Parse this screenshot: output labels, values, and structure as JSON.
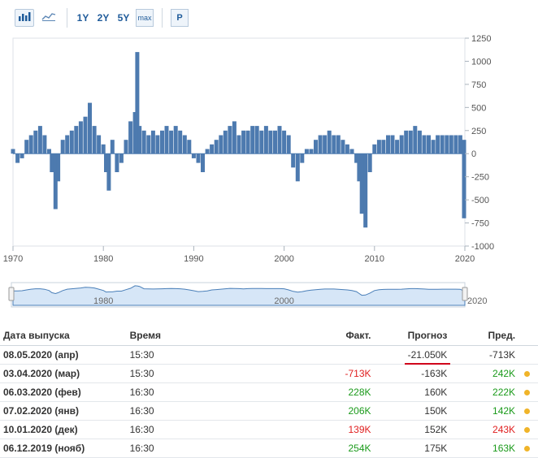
{
  "toolbar": {
    "bar_icon": "bar-chart-icon",
    "line_icon": "line-chart-icon",
    "range_1y": "1Y",
    "range_2y": "2Y",
    "range_5y": "5Y",
    "range_max": "max",
    "p_label": "P"
  },
  "colors": {
    "bar": "#4d7aaf",
    "navigator_fill": "#d6e6f7",
    "navigator_line": "#4a7fb8",
    "positive": "#1a9a1a",
    "negative": "#e02020",
    "dot": "#f0b429",
    "underline": "#d0021b"
  },
  "chart_data": {
    "type": "bar",
    "x_range": [
      1970,
      2020
    ],
    "ylim": [
      -1000,
      1250
    ],
    "y_ticks": [
      "1250",
      "1000",
      "750",
      "500",
      "250",
      "0",
      "-250",
      "-500",
      "-750",
      "-1000"
    ],
    "x_ticks": [
      "1970",
      "1980",
      "1990",
      "2000",
      "2010",
      "2020"
    ],
    "series": [
      {
        "x": [
          1970.0,
          1970.5,
          1971.0,
          1971.5,
          1972.0,
          1972.5,
          1973.0,
          1973.5,
          1974.0,
          1974.3,
          1974.7,
          1975.0,
          1975.5,
          1976.0,
          1976.5,
          1977.0,
          1977.5,
          1978.0,
          1978.5,
          1979.0,
          1979.5,
          1980.0,
          1980.3,
          1980.6,
          1981.0,
          1981.5,
          1982.0,
          1982.5,
          1983.0,
          1983.5,
          1983.75,
          1984.0,
          1984.5,
          1985.0,
          1985.5,
          1986.0,
          1986.5,
          1987.0,
          1987.5,
          1988.0,
          1988.5,
          1989.0,
          1989.5,
          1990.0,
          1990.5,
          1991.0,
          1991.5,
          1992.0,
          1992.5,
          1993.0,
          1993.5,
          1994.0,
          1994.5,
          1995.0,
          1995.5,
          1996.0,
          1996.5,
          1997.0,
          1997.5,
          1998.0,
          1998.5,
          1999.0,
          1999.5,
          2000.0,
          2000.5,
          2001.0,
          2001.5,
          2002.0,
          2002.5,
          2003.0,
          2003.5,
          2004.0,
          2004.5,
          2005.0,
          2005.5,
          2006.0,
          2006.5,
          2007.0,
          2007.5,
          2008.0,
          2008.3,
          2008.6,
          2009.0,
          2009.5,
          2010.0,
          2010.5,
          2011.0,
          2011.5,
          2012.0,
          2012.5,
          2013.0,
          2013.5,
          2014.0,
          2014.5,
          2015.0,
          2015.5,
          2016.0,
          2016.5,
          2017.0,
          2017.5,
          2018.0,
          2018.5,
          2019.0,
          2019.5,
          2020.0,
          2020.2
        ],
        "y": [
          50,
          -100,
          -50,
          150,
          200,
          250,
          300,
          200,
          50,
          -200,
          -600,
          -300,
          150,
          200,
          250,
          300,
          350,
          400,
          550,
          300,
          200,
          100,
          -200,
          -400,
          150,
          -200,
          -100,
          150,
          350,
          450,
          1100,
          300,
          250,
          200,
          250,
          200,
          250,
          300,
          250,
          300,
          250,
          200,
          150,
          -50,
          -100,
          -200,
          50,
          100,
          150,
          200,
          250,
          300,
          350,
          200,
          250,
          250,
          300,
          300,
          250,
          300,
          250,
          250,
          300,
          250,
          200,
          -150,
          -300,
          -100,
          50,
          50,
          150,
          200,
          200,
          250,
          200,
          200,
          150,
          100,
          50,
          -100,
          -300,
          -650,
          -800,
          -200,
          100,
          150,
          150,
          200,
          200,
          150,
          200,
          250,
          250,
          300,
          250,
          200,
          200,
          150,
          200,
          200,
          200,
          200,
          200,
          200,
          150,
          -700
        ]
      }
    ]
  },
  "navigator": {
    "ticks": [
      "1980",
      "2000",
      "2020"
    ]
  },
  "table": {
    "headers": {
      "date": "Дата выпуска",
      "time": "Время",
      "actual": "Факт.",
      "forecast": "Прогноз",
      "previous": "Пред."
    },
    "rows": [
      {
        "date": "08.05.2020 (апр)",
        "time": "15:30",
        "actual": "",
        "forecast": "-21.050K",
        "previous": "-713K",
        "actual_color": "",
        "prev_color": "",
        "dot": false
      },
      {
        "date": "03.04.2020 (мар)",
        "time": "15:30",
        "actual": "-713K",
        "forecast": "-163K",
        "previous": "242K",
        "actual_color": "#e02020",
        "prev_color": "#1a9a1a",
        "dot": true
      },
      {
        "date": "06.03.2020 (фев)",
        "time": "16:30",
        "actual": "228K",
        "forecast": "160K",
        "previous": "222K",
        "actual_color": "#1a9a1a",
        "prev_color": "#1a9a1a",
        "dot": true
      },
      {
        "date": "07.02.2020 (янв)",
        "time": "16:30",
        "actual": "206K",
        "forecast": "150K",
        "previous": "142K",
        "actual_color": "#1a9a1a",
        "prev_color": "#1a9a1a",
        "dot": true
      },
      {
        "date": "10.01.2020 (дек)",
        "time": "16:30",
        "actual": "139K",
        "forecast": "152K",
        "previous": "243K",
        "actual_color": "#e02020",
        "prev_color": "#e02020",
        "dot": true
      },
      {
        "date": "06.12.2019 (нояб)",
        "time": "16:30",
        "actual": "254K",
        "forecast": "175K",
        "previous": "163K",
        "actual_color": "#1a9a1a",
        "prev_color": "#1a9a1a",
        "dot": true
      }
    ]
  }
}
